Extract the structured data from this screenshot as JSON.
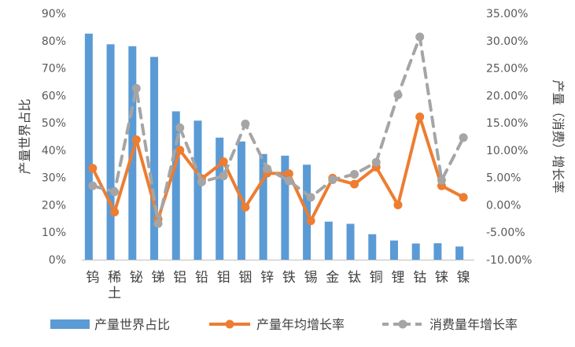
{
  "chart_data": {
    "type": "bar",
    "categories": [
      "钨",
      "稀土",
      "铋",
      "锑",
      "铝",
      "铅",
      "钼",
      "铟",
      "锌",
      "铁",
      "锡",
      "金",
      "钛",
      "铜",
      "锂",
      "钴",
      "铼",
      "镍"
    ],
    "left_axis": {
      "title": "产量世界占比",
      "ticks": [
        "0%",
        "10%",
        "20%",
        "30%",
        "40%",
        "50%",
        "60%",
        "70%",
        "80%",
        "90%"
      ],
      "ylim": [
        0,
        90
      ]
    },
    "right_axis": {
      "title": "产量（消费）增长率",
      "ticks": [
        "-10.00%",
        "-5.00%",
        "0.00%",
        "5.00%",
        "10.00%",
        "15.00%",
        "20.00%",
        "25.00%",
        "30.00%",
        "35.00%"
      ],
      "ylim": [
        -10,
        35
      ]
    },
    "series": [
      {
        "name": "产量世界占比",
        "type": "bar",
        "axis": "left",
        "color": "#5b9bd5",
        "values": [
          82.6,
          78.7,
          78.0,
          74.1,
          54.2,
          50.8,
          44.6,
          43.2,
          38.6,
          38.0,
          34.7,
          13.9,
          13.1,
          9.3,
          7.0,
          5.9,
          6.0,
          4.8
        ]
      },
      {
        "name": "产量年均增长率",
        "type": "line",
        "axis": "right",
        "color": "#ed7d31",
        "values": [
          6.7,
          -1.3,
          11.9,
          -2.6,
          10.0,
          4.8,
          7.9,
          -0.4,
          5.8,
          5.7,
          -2.9,
          4.9,
          3.8,
          6.9,
          0.0,
          16.1,
          3.5,
          1.4
        ]
      },
      {
        "name": "消费量年增长率",
        "type": "line",
        "axis": "right",
        "color": "#a5a5a5",
        "dashed": true,
        "values": [
          3.5,
          2.4,
          21.3,
          -3.4,
          14.1,
          4.2,
          5.3,
          14.8,
          6.6,
          4.4,
          1.4,
          4.6,
          5.6,
          7.8,
          20.1,
          30.7,
          4.5,
          12.3
        ]
      }
    ],
    "grid": false,
    "legend": "bottom"
  }
}
